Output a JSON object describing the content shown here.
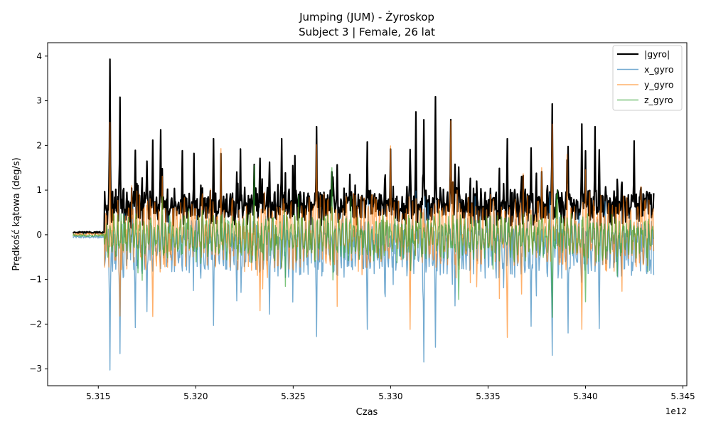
{
  "chart_data": {
    "type": "line",
    "title": "Jumping (JUM) - Żyroskop",
    "subtitle": "Subject 3 | Female, 26 lat",
    "xlabel": "Czas",
    "ylabel": "Prędkość kątowa (deg/s)",
    "x_offset_label": "1e12",
    "xlim": [
      5.3124,
      5.3452
    ],
    "ylim": [
      -3.38,
      4.3
    ],
    "x_ticks": [
      5.315,
      5.32,
      5.325,
      5.33,
      5.335,
      5.34,
      5.345
    ],
    "x_tick_labels": [
      "5.315",
      "5.320",
      "5.325",
      "5.330",
      "5.335",
      "5.340",
      "5.345"
    ],
    "y_ticks": [
      -3,
      -2,
      -1,
      0,
      1,
      2,
      3,
      4
    ],
    "y_tick_labels": [
      "−3",
      "−2",
      "−1",
      "0",
      "1",
      "2",
      "3",
      "4"
    ],
    "grid": false,
    "legend_position": "top-right",
    "series": [
      {
        "name": "|gyro|",
        "color": "#000000",
        "peaks": [
          [
            5.3156,
            3.93
          ],
          [
            5.3161,
            3.08
          ],
          [
            5.3178,
            2.12
          ],
          [
            5.3182,
            2.35
          ],
          [
            5.3193,
            1.88
          ],
          [
            5.3199,
            1.82
          ],
          [
            5.3209,
            2.15
          ],
          [
            5.3223,
            1.92
          ],
          [
            5.3234,
            1.25
          ],
          [
            5.3244,
            2.15
          ],
          [
            5.3251,
            1.77
          ],
          [
            5.3262,
            2.42
          ],
          [
            5.3279,
            1.35
          ],
          [
            5.3288,
            2.08
          ],
          [
            5.33,
            1.92
          ],
          [
            5.3313,
            2.75
          ],
          [
            5.3323,
            3.09
          ],
          [
            5.3331,
            2.58
          ],
          [
            5.336,
            2.15
          ],
          [
            5.3383,
            2.93
          ],
          [
            5.3398,
            2.48
          ],
          [
            5.3405,
            2.42
          ],
          [
            5.3425,
            2.1
          ]
        ]
      },
      {
        "name": "x_gyro",
        "color": "#1f77b4",
        "troughs": [
          [
            5.3156,
            -3.03
          ],
          [
            5.3161,
            -2.66
          ],
          [
            5.3169,
            -2.08
          ],
          [
            5.3175,
            -1.72
          ],
          [
            5.3209,
            -2.03
          ],
          [
            5.3221,
            -1.48
          ],
          [
            5.3238,
            -1.78
          ],
          [
            5.3262,
            -2.28
          ],
          [
            5.3288,
            -2.12
          ],
          [
            5.3317,
            -2.85
          ],
          [
            5.3323,
            -2.52
          ],
          [
            5.3372,
            -2.05
          ],
          [
            5.3383,
            -2.7
          ],
          [
            5.3391,
            -2.2
          ],
          [
            5.3407,
            -2.1
          ]
        ]
      },
      {
        "name": "y_gyro",
        "color": "#ff7f0e",
        "peaks": [
          [
            5.3156,
            2.52
          ],
          [
            5.3262,
            2.02
          ],
          [
            5.33,
            1.99
          ],
          [
            5.3331,
            2.55
          ],
          [
            5.3383,
            2.48
          ]
        ],
        "troughs": [
          [
            5.3161,
            -1.82
          ],
          [
            5.3178,
            -1.83
          ],
          [
            5.3233,
            -1.7
          ],
          [
            5.331,
            -2.12
          ],
          [
            5.336,
            -2.3
          ],
          [
            5.3398,
            -2.12
          ]
        ]
      },
      {
        "name": "z_gyro",
        "color": "#2ca02c",
        "peaks": [
          [
            5.323,
            1.55
          ],
          [
            5.327,
            1.5
          ],
          [
            5.3385,
            0.9
          ]
        ],
        "troughs": [
          [
            5.3335,
            -1.45
          ],
          [
            5.3383,
            -1.85
          ],
          [
            5.34,
            -1.5
          ]
        ]
      }
    ]
  }
}
